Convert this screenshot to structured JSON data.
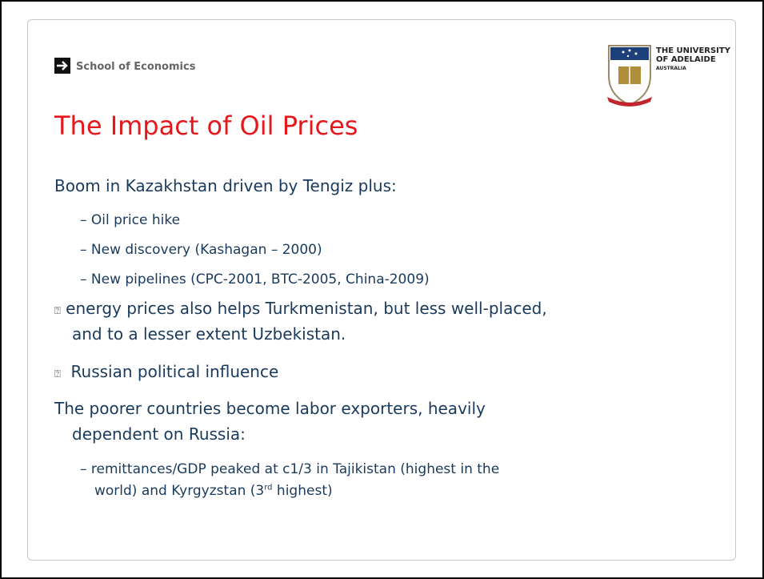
{
  "header": {
    "school": "School of Economics",
    "logo": {
      "line1": "THE UNIVERSITY",
      "line2": "OF ADELAIDE",
      "line3": "AUSTRALIA"
    }
  },
  "title": "The Impact of Oil Prices",
  "body": [
    {
      "lines": [
        "Boom in Kazakhstan driven by Tengiz plus:"
      ]
    },
    {
      "marker": "–",
      "lines": [
        "Oil price hike"
      ]
    },
    {
      "marker": "–",
      "lines": [
        "New discovery (Kashagan – 2000)"
      ]
    },
    {
      "marker": "–",
      "lines": [
        "New pipelines (CPC-2001, BTC-2005, China-2009)"
      ]
    },
    {
      "marker": "⍰",
      "lines": [
        "energy prices also helps Turkmenistan, but less well-placed,",
        "and to a lesser extent Uzbekistan."
      ]
    },
    {
      "marker": "⍰",
      "lines": [
        "Russian political influence"
      ]
    },
    {
      "lines": [
        "The poorer countries become labor exporters, heavily",
        "dependent on Russia:"
      ]
    },
    {
      "marker": "–",
      "lines": [
        "remittances/GDP peaked at c1/3 in Tajikistan (highest in the",
        "world) and Kyrgyzstan (3"
      ],
      "sup": "rd",
      "after": " highest)"
    }
  ]
}
